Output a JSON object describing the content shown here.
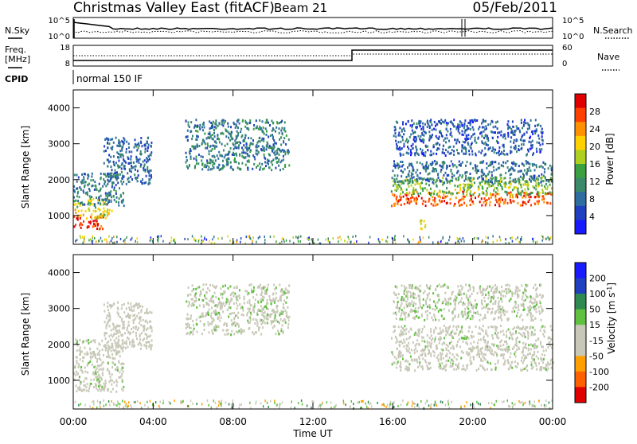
{
  "header": {
    "title": "Christmas Valley East (fitACF)",
    "beam": "Beam 21",
    "date": "05/Feb/2011"
  },
  "left_labels": {
    "nsky": "N.Sky",
    "freq": "Freq.",
    "mhz": "[MHz]",
    "cpid": "CPID",
    "cpid_text": "normal 150 IF"
  },
  "right_labels": {
    "nsearch": "N.Search",
    "nave": "Nave"
  },
  "noise_panel": {
    "left_ticks": [
      "10^5",
      "10^0"
    ],
    "right_ticks": [
      "10^5",
      "10^0"
    ]
  },
  "freq_panel": {
    "left_ticks": [
      "18",
      "8"
    ],
    "right_ticks": [
      "60",
      "0"
    ]
  },
  "colors": {
    "power_scale": [
      "#1a1aff",
      "#2040c0",
      "#2e6da0",
      "#3a8a6a",
      "#3aa040",
      "#b0d020",
      "#ffd000",
      "#ff9000",
      "#ff4000",
      "#e00000"
    ],
    "velocity_scale": [
      "#e00000",
      "#ff6000",
      "#ffa000",
      "#c8c8b8",
      "#c8c8b8",
      "#60c040",
      "#2e8a50",
      "#2040c0",
      "#1a1aff"
    ]
  },
  "chart_data": [
    {
      "type": "heatmap",
      "ylabel": "Slant Range [km]",
      "yticks": [
        "1000",
        "2000",
        "3000",
        "4000"
      ],
      "ylim": [
        200,
        4500
      ],
      "colorbar": {
        "label": "Power [dB]",
        "ticks": [
          "4",
          "8",
          "12",
          "16",
          "20",
          "24",
          "28"
        ],
        "range": [
          0,
          30
        ]
      },
      "regions": [
        {
          "t0": 0.0,
          "t1": 1.5,
          "r0": 650,
          "r1": 1050,
          "value": 27
        },
        {
          "t0": 0.0,
          "t1": 1.9,
          "r0": 950,
          "r1": 1500,
          "value": 18
        },
        {
          "t0": 0.0,
          "t1": 2.5,
          "r0": 1300,
          "r1": 2200,
          "value": 9
        },
        {
          "t0": 1.5,
          "t1": 3.9,
          "r0": 1900,
          "r1": 3200,
          "value": 7
        },
        {
          "t0": 5.6,
          "t1": 10.8,
          "r0": 2300,
          "r1": 3700,
          "value": 9
        },
        {
          "t0": 15.9,
          "t1": 24.0,
          "r0": 1300,
          "r1": 1700,
          "value": 25
        },
        {
          "t0": 15.9,
          "t1": 24.0,
          "r0": 1600,
          "r1": 2100,
          "value": 15
        },
        {
          "t0": 15.9,
          "t1": 24.0,
          "r0": 1950,
          "r1": 2550,
          "value": 8
        },
        {
          "t0": 16.0,
          "t1": 23.5,
          "r0": 2700,
          "r1": 3700,
          "value": 6
        },
        {
          "t0": 17.3,
          "t1": 17.7,
          "r0": 650,
          "r1": 900,
          "value": 18
        }
      ]
    },
    {
      "type": "heatmap",
      "ylabel": "Slant Range [km]",
      "yticks": [
        "1000",
        "2000",
        "3000",
        "4000"
      ],
      "ylim": [
        200,
        4500
      ],
      "xlabel": "Time UT",
      "xticks": [
        "00:00",
        "04:00",
        "08:00",
        "12:00",
        "16:00",
        "20:00",
        "00:00"
      ],
      "xlim": [
        0,
        24
      ],
      "colorbar": {
        "label": "Velocity [m s^-1]",
        "ticks": [
          "200",
          "100",
          "50",
          "15",
          "-15",
          "-50",
          "-100",
          "-200"
        ],
        "range": [
          -250,
          250
        ]
      },
      "regions": [
        {
          "t0": 0.0,
          "t1": 2.5,
          "r0": 700,
          "r1": 2200,
          "value": 0
        },
        {
          "t0": 1.5,
          "t1": 3.9,
          "r0": 1900,
          "r1": 3200,
          "value": -30
        },
        {
          "t0": 5.6,
          "t1": 10.8,
          "r0": 2300,
          "r1": 3700,
          "value": 5
        },
        {
          "t0": 15.9,
          "t1": 24.0,
          "r0": 1300,
          "r1": 2550,
          "value": 0
        },
        {
          "t0": 16.0,
          "t1": 23.5,
          "r0": 2700,
          "r1": 3700,
          "value": 10
        }
      ]
    }
  ]
}
